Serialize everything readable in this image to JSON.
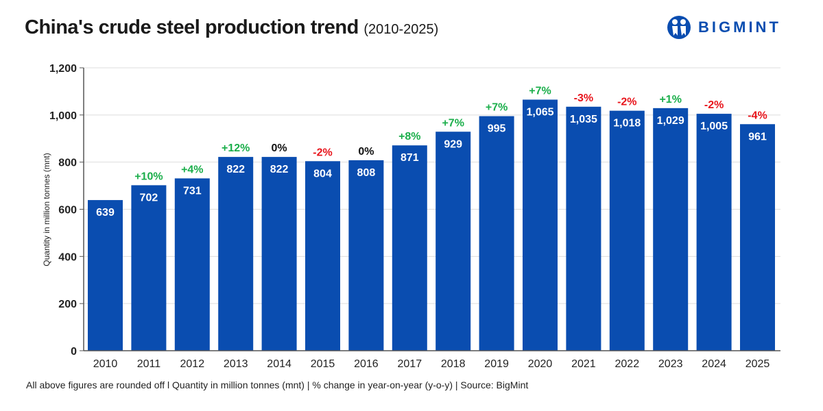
{
  "header": {
    "title": "China's crude steel production trend",
    "subtitle": "(2010-2025)",
    "logo_text": "BIGMINT"
  },
  "footer": "All above figures are rounded off  l  Quantity in million tonnes (mnt) | % change in year-on-year (y-o-y) | Source: BigMint",
  "colors": {
    "bar": "#0a4db0",
    "positive": "#1aae4a",
    "negative": "#e8141b",
    "neutral": "#111111"
  },
  "chart_data": {
    "type": "bar",
    "title": "China's crude steel production trend (2010-2025)",
    "ylabel": "Quantity in million tonnes (mnt)",
    "xlabel": "",
    "ylim": [
      0,
      1200
    ],
    "yticks": [
      0,
      200,
      400,
      600,
      800,
      1000,
      1200
    ],
    "ytick_labels": [
      "0",
      "200",
      "400",
      "600",
      "800",
      "1,000",
      "1,200"
    ],
    "grid": true,
    "categories": [
      "2010",
      "2011",
      "2012",
      "2013",
      "2014",
      "2015",
      "2016",
      "2017",
      "2018",
      "2019",
      "2020",
      "2021",
      "2022",
      "2023",
      "2024",
      "2025"
    ],
    "values": [
      639,
      702,
      731,
      822,
      822,
      804,
      808,
      871,
      929,
      995,
      1065,
      1035,
      1018,
      1029,
      1005,
      961
    ],
    "value_labels": [
      "639",
      "702",
      "731",
      "822",
      "822",
      "804",
      "808",
      "871",
      "929",
      "995",
      "1,065",
      "1,035",
      "1,018",
      "1,029",
      "1,005",
      "961"
    ],
    "change_labels": [
      "",
      "+10%",
      "+4%",
      "+12%",
      "0%",
      "-2%",
      "0%",
      "+8%",
      "+7%",
      "+7%",
      "+7%",
      "-3%",
      "-2%",
      "+1%",
      "-2%",
      "-4%"
    ]
  }
}
